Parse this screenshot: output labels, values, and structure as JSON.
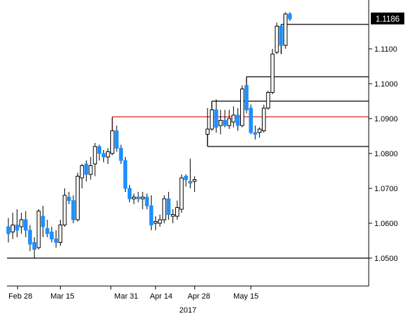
{
  "chart_data": {
    "type": "candlestick",
    "title": "",
    "ylim": [
      1.042,
      1.124
    ],
    "yticks": [
      "1.0500",
      "1.0600",
      "1.0700",
      "1.0800",
      "1.0900",
      "1.1000",
      "1.1100"
    ],
    "xticks": [
      "Feb 28",
      "Mar 15",
      "Mar 31",
      "Apr 14",
      "Apr 28",
      "May 15"
    ],
    "xlabel": "2017",
    "last_price": "1.1186",
    "colors": {
      "up_fill": "#ffffff",
      "down_fill": "#1f8fff",
      "outline": "#000000",
      "resistance": "#e02020",
      "levels": "#000000"
    },
    "candles": [
      {
        "date": "Feb 27",
        "open": 1.059,
        "high": 1.0615,
        "low": 1.0545,
        "close": 1.057
      },
      {
        "date": "Feb 28",
        "open": 1.0575,
        "high": 1.063,
        "low": 1.0555,
        "close": 1.0595
      },
      {
        "date": "Mar 1",
        "open": 1.0595,
        "high": 1.064,
        "low": 1.056,
        "close": 1.058
      },
      {
        "date": "Mar 2",
        "open": 1.059,
        "high": 1.063,
        "low": 1.057,
        "close": 1.061
      },
      {
        "date": "Mar 3",
        "open": 1.061,
        "high": 1.0635,
        "low": 1.056,
        "close": 1.058
      },
      {
        "date": "Mar 6",
        "open": 1.058,
        "high": 1.0595,
        "low": 1.052,
        "close": 1.054
      },
      {
        "date": "Mar 7",
        "open": 1.0545,
        "high": 1.056,
        "low": 1.05,
        "close": 1.0525
      },
      {
        "date": "Mar 8",
        "open": 1.053,
        "high": 1.064,
        "low": 1.0525,
        "close": 1.0635
      },
      {
        "date": "Mar 9",
        "open": 1.062,
        "high": 1.065,
        "low": 1.056,
        "close": 1.059
      },
      {
        "date": "Mar 10",
        "open": 1.0585,
        "high": 1.061,
        "low": 1.056,
        "close": 1.057
      },
      {
        "date": "Mar 13",
        "open": 1.0575,
        "high": 1.059,
        "low": 1.0545,
        "close": 1.0555
      },
      {
        "date": "Mar 14",
        "open": 1.0555,
        "high": 1.058,
        "low": 1.053,
        "close": 1.0545
      },
      {
        "date": "Mar 15",
        "open": 1.0545,
        "high": 1.061,
        "low": 1.0535,
        "close": 1.0595
      },
      {
        "date": "Mar 16",
        "open": 1.0595,
        "high": 1.07,
        "low": 1.059,
        "close": 1.068
      },
      {
        "date": "Mar 17",
        "open": 1.0675,
        "high": 1.069,
        "low": 1.0655,
        "close": 1.0665
      },
      {
        "date": "Mar 20",
        "open": 1.0665,
        "high": 1.068,
        "low": 1.06,
        "close": 1.061
      },
      {
        "date": "Mar 21",
        "open": 1.061,
        "high": 1.0745,
        "low": 1.0605,
        "close": 1.0735
      },
      {
        "date": "Mar 22",
        "open": 1.073,
        "high": 1.077,
        "low": 1.07,
        "close": 1.0765
      },
      {
        "date": "Mar 23",
        "open": 1.077,
        "high": 1.078,
        "low": 1.072,
        "close": 1.074
      },
      {
        "date": "Mar 24",
        "open": 1.074,
        "high": 1.079,
        "low": 1.0725,
        "close": 1.0765
      },
      {
        "date": "Mar 27",
        "open": 1.077,
        "high": 1.083,
        "low": 1.0735,
        "close": 1.082
      },
      {
        "date": "Mar 28",
        "open": 1.082,
        "high": 1.0825,
        "low": 1.078,
        "close": 1.08
      },
      {
        "date": "Mar 29",
        "open": 1.08,
        "high": 1.081,
        "low": 1.0775,
        "close": 1.079
      },
      {
        "date": "Mar 30",
        "open": 1.079,
        "high": 1.0815,
        "low": 1.077,
        "close": 1.0805
      },
      {
        "date": "Mar 31",
        "open": 1.08,
        "high": 1.0905,
        "low": 1.0795,
        "close": 1.0865
      },
      {
        "date": "Apr 3",
        "open": 1.0865,
        "high": 1.088,
        "low": 1.0805,
        "close": 1.0815
      },
      {
        "date": "Apr 4",
        "open": 1.0815,
        "high": 1.0825,
        "low": 1.077,
        "close": 1.078
      },
      {
        "date": "Apr 5",
        "open": 1.078,
        "high": 1.079,
        "low": 1.069,
        "close": 1.07
      },
      {
        "date": "Apr 6",
        "open": 1.07,
        "high": 1.071,
        "low": 1.066,
        "close": 1.067
      },
      {
        "date": "Apr 7",
        "open": 1.067,
        "high": 1.0685,
        "low": 1.0655,
        "close": 1.0675
      },
      {
        "date": "Apr 10",
        "open": 1.0675,
        "high": 1.069,
        "low": 1.066,
        "close": 1.067
      },
      {
        "date": "Apr 11",
        "open": 1.067,
        "high": 1.069,
        "low": 1.064,
        "close": 1.0675
      },
      {
        "date": "Apr 12",
        "open": 1.0675,
        "high": 1.0685,
        "low": 1.064,
        "close": 1.065
      },
      {
        "date": "Apr 13",
        "open": 1.065,
        "high": 1.068,
        "low": 1.058,
        "close": 1.0595
      },
      {
        "date": "Apr 14",
        "open": 1.06,
        "high": 1.062,
        "low": 1.058,
        "close": 1.0605
      },
      {
        "date": "Apr 17",
        "open": 1.06,
        "high": 1.0625,
        "low": 1.059,
        "close": 1.061
      },
      {
        "date": "Apr 18",
        "open": 1.061,
        "high": 1.068,
        "low": 1.06,
        "close": 1.067
      },
      {
        "date": "Apr 19",
        "open": 1.067,
        "high": 1.069,
        "low": 1.061,
        "close": 1.0625
      },
      {
        "date": "Apr 20",
        "open": 1.062,
        "high": 1.064,
        "low": 1.06,
        "close": 1.0625
      },
      {
        "date": "Apr 21",
        "open": 1.062,
        "high": 1.0665,
        "low": 1.061,
        "close": 1.0645
      },
      {
        "date": "Apr 24",
        "open": 1.064,
        "high": 1.074,
        "low": 1.063,
        "close": 1.073
      },
      {
        "date": "Apr 25",
        "open": 1.0735,
        "high": 1.074,
        "low": 1.0705,
        "close": 1.0725
      },
      {
        "date": "Apr 26",
        "open": 1.072,
        "high": 1.0785,
        "low": 1.07,
        "close": 1.0715
      },
      {
        "date": "Apr 27",
        "open": 1.072,
        "high": 1.0735,
        "low": 1.069,
        "close": 1.0725
      },
      {
        "date": "May 1",
        "open": 1.0855,
        "high": 1.093,
        "low": 1.0825,
        "close": 1.087
      },
      {
        "date": "May 2",
        "open": 1.087,
        "high": 1.095,
        "low": 1.0865,
        "close": 1.0925
      },
      {
        "date": "May 3",
        "open": 1.0925,
        "high": 1.0955,
        "low": 1.086,
        "close": 1.0875
      },
      {
        "date": "May 4",
        "open": 1.088,
        "high": 1.0925,
        "low": 1.0855,
        "close": 1.0895
      },
      {
        "date": "May 5",
        "open": 1.0895,
        "high": 1.0925,
        "low": 1.0875,
        "close": 1.088
      },
      {
        "date": "May 8",
        "open": 1.088,
        "high": 1.0925,
        "low": 1.087,
        "close": 1.09
      },
      {
        "date": "May 9",
        "open": 1.089,
        "high": 1.0935,
        "low": 1.0875,
        "close": 1.091
      },
      {
        "date": "May 10",
        "open": 1.091,
        "high": 1.093,
        "low": 1.0865,
        "close": 1.088
      },
      {
        "date": "May 11",
        "open": 1.088,
        "high": 1.0995,
        "low": 1.0875,
        "close": 1.0985
      },
      {
        "date": "May 12",
        "open": 1.0995,
        "high": 1.101,
        "low": 1.0915,
        "close": 1.0925
      },
      {
        "date": "May 15",
        "open": 1.093,
        "high": 1.094,
        "low": 1.0855,
        "close": 1.086
      },
      {
        "date": "May 16",
        "open": 1.086,
        "high": 1.088,
        "low": 1.084,
        "close": 1.0855
      },
      {
        "date": "May 17",
        "open": 1.086,
        "high": 1.0875,
        "low": 1.0845,
        "close": 1.087
      },
      {
        "date": "May 18",
        "open": 1.0865,
        "high": 1.094,
        "low": 1.086,
        "close": 1.093
      },
      {
        "date": "May 19",
        "open": 1.093,
        "high": 1.098,
        "low": 1.0925,
        "close": 1.0975
      },
      {
        "date": "May 22",
        "open": 1.0975,
        "high": 1.11,
        "low": 1.097,
        "close": 1.1085
      },
      {
        "date": "May 23",
        "open": 1.109,
        "high": 1.1175,
        "low": 1.1085,
        "close": 1.1165
      },
      {
        "date": "May 24",
        "open": 1.1165,
        "high": 1.117,
        "low": 1.1085,
        "close": 1.111
      },
      {
        "date": "May 25",
        "open": 1.111,
        "high": 1.1205,
        "low": 1.11,
        "close": 1.12
      },
      {
        "date": "May 26",
        "open": 1.12,
        "high": 1.1205,
        "low": 1.118,
        "close": 1.1186
      }
    ],
    "levels": [
      {
        "name": "support-1.0500",
        "color": "black",
        "y": 1.05,
        "from": "Feb 27",
        "to": "May 26"
      },
      {
        "name": "support-1.0820",
        "color": "black",
        "y": 1.082,
        "from": "May 1",
        "to": "May 26",
        "tick_from": 1.087
      },
      {
        "name": "resistance-1.0905",
        "color": "red",
        "y": 1.0905,
        "from": "Mar 31",
        "to": "May 26",
        "tick_from": 1.0865
      },
      {
        "name": "level-1.0950",
        "color": "black",
        "y": 1.095,
        "from": "May 2",
        "to": "May 26",
        "tick_from": 1.0925
      },
      {
        "name": "level-1.1020",
        "color": "black",
        "y": 1.102,
        "from": "May 12",
        "to": "May 26",
        "tick_from": 1.0995
      },
      {
        "name": "level-1.1170",
        "color": "black",
        "y": 1.117,
        "from": "May 24",
        "to": "May 26",
        "tick_from": 1.1085
      }
    ]
  }
}
